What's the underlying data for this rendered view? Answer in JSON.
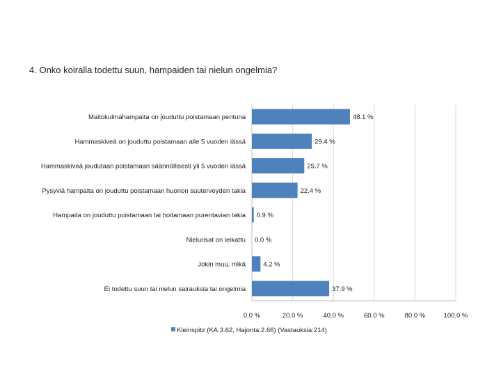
{
  "question": "4. Onko koiralla todettu suun, hampaiden tai nielun ongelmia?",
  "chart_data": {
    "type": "bar",
    "orientation": "horizontal",
    "categories": [
      "Maitokulmahampaita on jouduttu poistamaan pentuna",
      "Hammaskiveä on jouduttu poistamaan alle 5 vuoden iässä",
      "Hammaskiveä joudutaan poistamaan säännöllisesti yli 5 vuoden iässä",
      "Pysyviä hampaita on jouduttu poistamaan huonon suuterveyden takia",
      "Hampaita on jouduttu poistamaan tai hoitamaan purentavian takia",
      "Nielurisat on leikattu",
      "Jokin muu, mikä",
      "Ei todettu suun tai nielun sairauksia tai ongelmia"
    ],
    "series": [
      {
        "name": "Kleinspitz (KA:3.62, Hajonta:2.66) (Vastauksia:214)",
        "values": [
          48.1,
          29.4,
          25.7,
          22.4,
          0.9,
          0.0,
          4.2,
          37.9
        ],
        "labels": [
          "48.1 %",
          "29.4 %",
          "25.7 %",
          "22.4 %",
          "0.9 %",
          "0.0 %",
          "4.2 %",
          "37.9 %"
        ]
      }
    ],
    "xlim": [
      0,
      100
    ],
    "xticks": [
      "0.0 %",
      "20.0 %",
      "40.0 %",
      "60.0 %",
      "80.0 %",
      "100.0 %"
    ],
    "grid": true,
    "legend": "bottom",
    "bar_color": "#4f81bd"
  }
}
